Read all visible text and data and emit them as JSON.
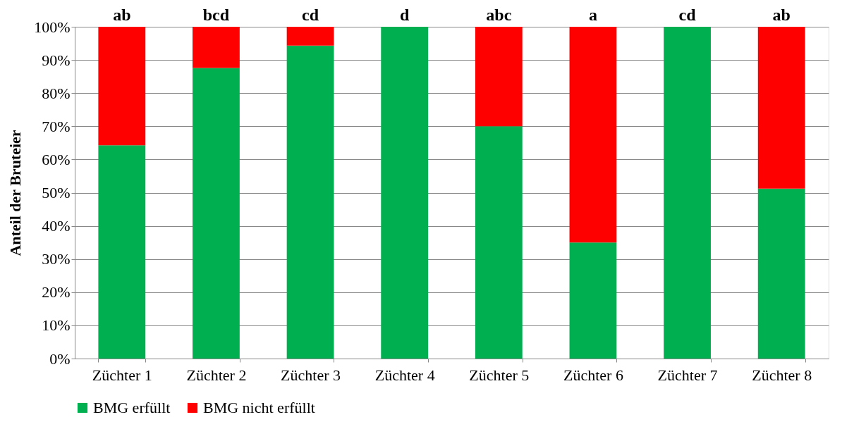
{
  "chart_data": {
    "type": "bar",
    "stacked": true,
    "ylabel": "Anteil der Bruteier",
    "categories": [
      "Züchter 1",
      "Züchter 2",
      "Züchter 3",
      "Züchter 4",
      "Züchter 5",
      "Züchter 6",
      "Züchter 7",
      "Züchter 8"
    ],
    "series": [
      {
        "name": "BMG erfüllt",
        "color": "#00b050",
        "values": [
          64.3,
          87.6,
          94.3,
          100,
          70,
          35,
          100,
          51.2
        ]
      },
      {
        "name": "BMG nicht erfüllt",
        "color": "#ff0000",
        "values": [
          35.7,
          12.4,
          5.7,
          0,
          30,
          65,
          0,
          48.8
        ]
      }
    ],
    "ylim": [
      0,
      100
    ],
    "yticks": [
      {
        "value": 0,
        "label": "0%"
      },
      {
        "value": 10,
        "label": "10%"
      },
      {
        "value": 20,
        "label": "20%"
      },
      {
        "value": 30,
        "label": "30%"
      },
      {
        "value": 40,
        "label": "40%"
      },
      {
        "value": 50,
        "label": "50%"
      },
      {
        "value": 60,
        "label": "60%"
      },
      {
        "value": 70,
        "label": "70%"
      },
      {
        "value": 80,
        "label": "80%"
      },
      {
        "value": 90,
        "label": "90%"
      },
      {
        "value": 100,
        "label": "100%"
      }
    ],
    "annotations": [
      {
        "text": "ab",
        "x": "Züchter 1",
        "y": 100
      },
      {
        "text": "bcd",
        "x": "Züchter 2",
        "y": 100
      },
      {
        "text": "cd",
        "x": "Züchter 3",
        "y": 100
      },
      {
        "text": "d",
        "x": "Züchter 4",
        "y": 100
      },
      {
        "text": "abc",
        "x": "Züchter 5",
        "y": 100
      },
      {
        "text": "a",
        "x": "Züchter 6",
        "y": 100
      },
      {
        "text": "cd",
        "x": "Züchter 7",
        "y": 100
      },
      {
        "text": "ab",
        "x": "Züchter 8",
        "y": 100
      }
    ],
    "grid": "y",
    "legend": "bottom"
  }
}
